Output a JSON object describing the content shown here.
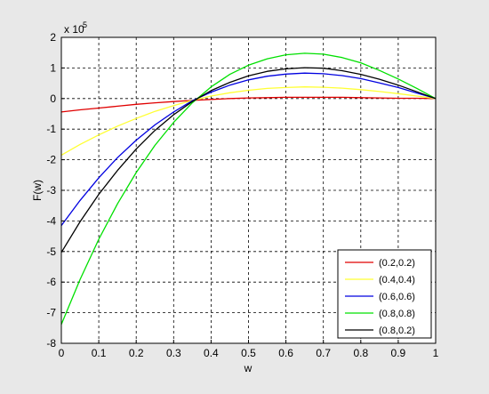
{
  "chart_data": {
    "type": "line",
    "title": "",
    "xlabel": "w",
    "ylabel": "F(w)",
    "y_exponent_base": "x 10",
    "y_exponent_power": "5",
    "xlim": [
      0,
      1
    ],
    "ylim": [
      -8,
      2
    ],
    "x_ticks": [
      0,
      0.1,
      0.2,
      0.3,
      0.4,
      0.5,
      0.6,
      0.7,
      0.8,
      0.9,
      1
    ],
    "x_tick_labels": [
      "0",
      "0.1",
      "0.2",
      "0.3",
      "0.4",
      "0.5",
      "0.6",
      "0.7",
      "0.8",
      "0.9",
      "1"
    ],
    "y_ticks": [
      -8,
      -7,
      -6,
      -5,
      -4,
      -3,
      -2,
      -1,
      0,
      1,
      2
    ],
    "y_tick_labels": [
      "-8",
      "-7",
      "-6",
      "-5",
      "-4",
      "-3",
      "-2",
      "-1",
      "0",
      "1",
      "2"
    ],
    "grid": true,
    "legend_position": "bottom-right",
    "x": [
      0,
      0.05,
      0.1,
      0.15,
      0.2,
      0.25,
      0.3,
      0.35,
      0.4,
      0.45,
      0.5,
      0.55,
      0.6,
      0.65,
      0.7,
      0.75,
      0.8,
      0.85,
      0.9,
      0.95,
      1
    ],
    "series": [
      {
        "name": "(0.2,0.2)",
        "color": "#e00000",
        "values": [
          -0.44,
          -0.37,
          -0.31,
          -0.25,
          -0.19,
          -0.14,
          -0.1,
          -0.06,
          -0.03,
          0,
          0.02,
          0.03,
          0.04,
          0.04,
          0.04,
          0.04,
          0.03,
          0.02,
          0.01,
          0.01,
          0
        ]
      },
      {
        "name": "(0.4,0.4)",
        "color": "#ffff33",
        "values": [
          -1.85,
          -1.5,
          -1.19,
          -0.9,
          -0.65,
          -0.42,
          -0.23,
          -0.06,
          0.08,
          0.19,
          0.27,
          0.33,
          0.36,
          0.38,
          0.37,
          0.34,
          0.29,
          0.23,
          0.16,
          0.08,
          0
        ]
      },
      {
        "name": "(0.6,0.6)",
        "color": "#0000e0",
        "values": [
          -4.15,
          -3.33,
          -2.59,
          -1.93,
          -1.36,
          -0.86,
          -0.44,
          -0.07,
          0.21,
          0.44,
          0.61,
          0.73,
          0.8,
          0.83,
          0.81,
          0.75,
          0.65,
          0.51,
          0.36,
          0.18,
          0
        ]
      },
      {
        "name": "(0.8,0.8)",
        "color": "#00e000",
        "values": [
          -7.38,
          -5.92,
          -4.6,
          -3.44,
          -2.42,
          -1.53,
          -0.78,
          -0.14,
          0.38,
          0.79,
          1.09,
          1.3,
          1.43,
          1.48,
          1.45,
          1.34,
          1.17,
          0.92,
          0.64,
          0.33,
          0
        ]
      },
      {
        "name": "(0.8,0.2)",
        "color": "#000000",
        "values": [
          -5.03,
          -4.03,
          -3.13,
          -2.35,
          -1.65,
          -1.04,
          -0.53,
          -0.1,
          0.26,
          0.53,
          0.74,
          0.89,
          0.97,
          1.01,
          0.99,
          0.91,
          0.79,
          0.63,
          0.44,
          0.22,
          0
        ]
      }
    ]
  }
}
